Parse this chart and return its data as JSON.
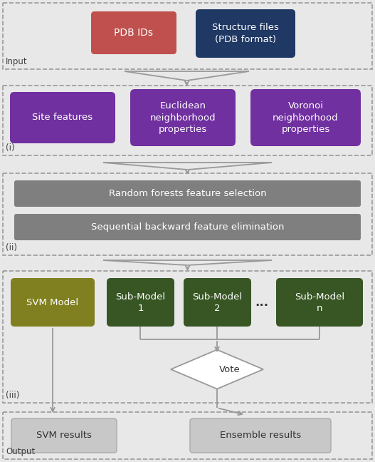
{
  "bg_color": "#e8e8e8",
  "section_bg": "#e8e8e8",
  "input_label": "Input",
  "output_label": "Output",
  "section_i_label": "(i)",
  "section_ii_label": "(ii)",
  "section_iii_label": "(iii)",
  "pdb_ids_text": "PDB IDs",
  "pdb_ids_color": "#c0504d",
  "structure_files_text": "Structure files\n(PDB format)",
  "structure_files_color": "#1f3864",
  "site_features_text": "Site features",
  "euclidean_text": "Euclidean\nneighborhood\nproperties",
  "voronoi_text": "Voronoi\nneighborhood\nproperties",
  "purple_color": "#7030a0",
  "rf_text": "Random forests feature selection",
  "sbfe_text": "Sequential backward feature elimination",
  "gray_box_color": "#7f7f7f",
  "svm_model_text": "SVM Model",
  "svm_model_color": "#808020",
  "sub_model_1_text": "Sub-Model\n1",
  "sub_model_2_text": "Sub-Model\n2",
  "sub_model_n_text": "Sub-Model\nn",
  "dark_green": "#375623",
  "vote_text": "Vote",
  "svm_results_text": "SVM results",
  "ensemble_results_text": "Ensemble results",
  "arrow_color": "#999999",
  "border_color": "#999999",
  "label_color": "#404040",
  "dark_text": "#333333",
  "white": "#ffffff"
}
